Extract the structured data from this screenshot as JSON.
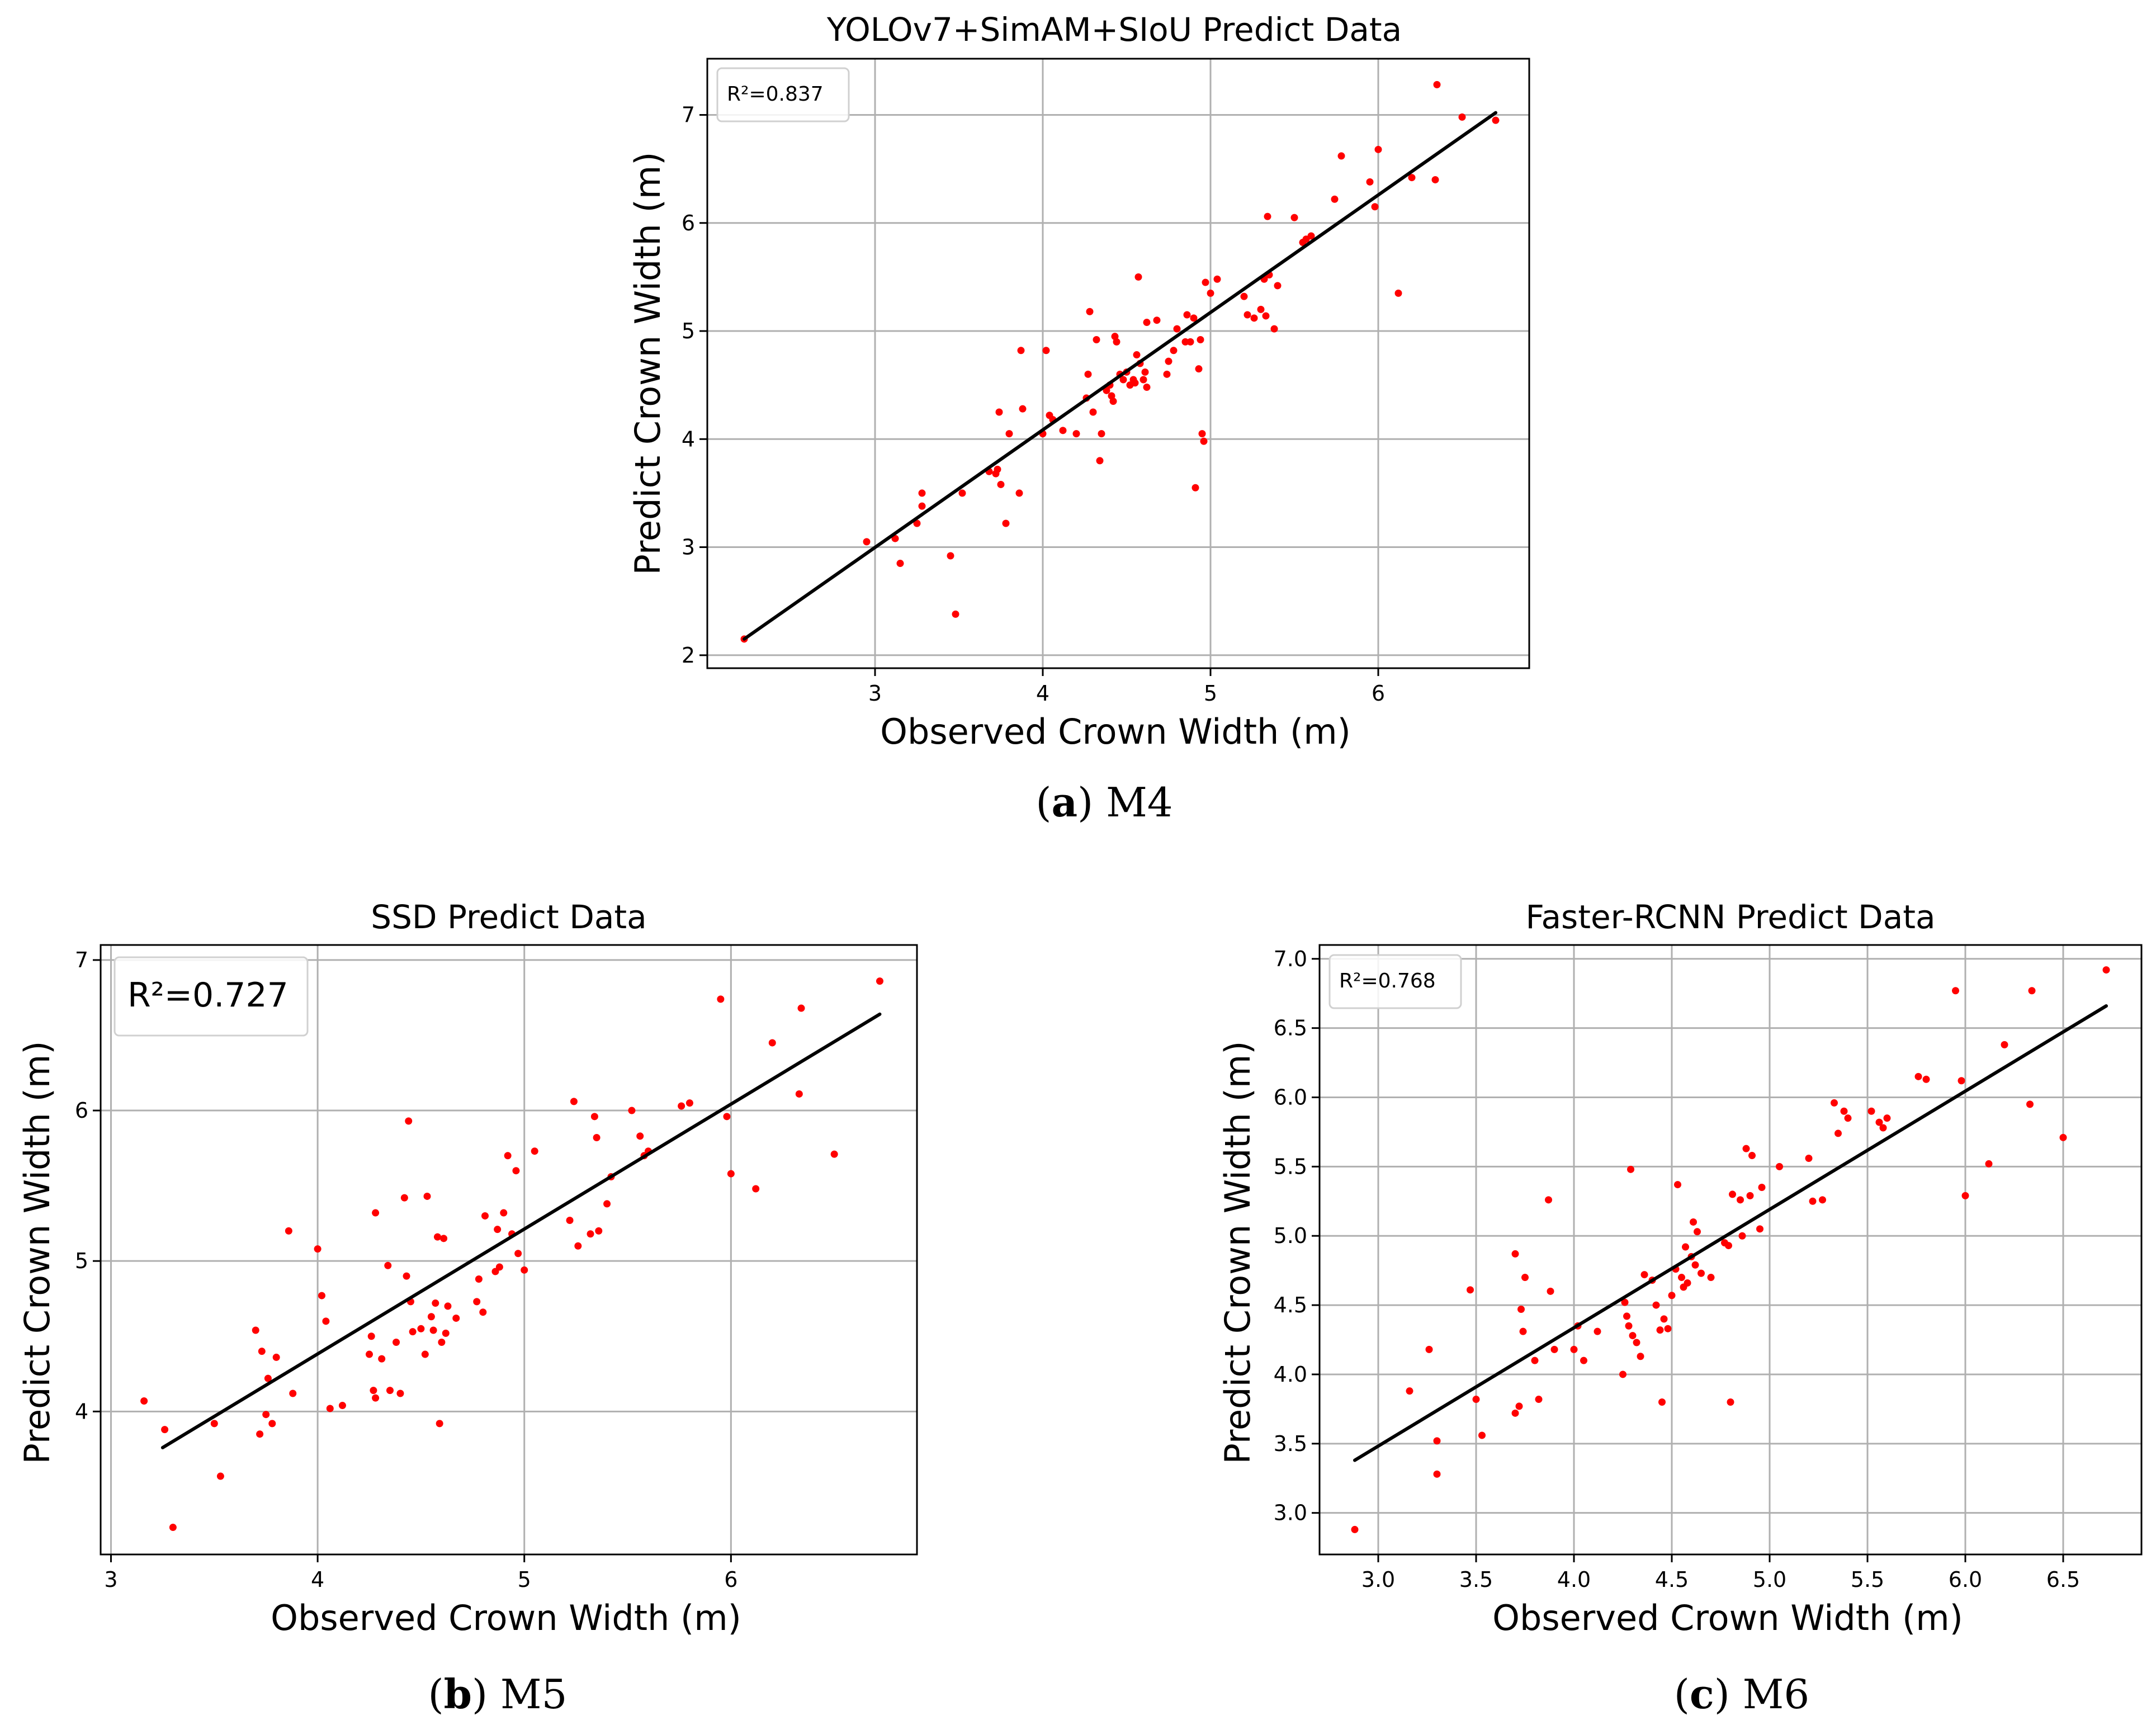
{
  "captions": [
    {
      "letter": "a",
      "open": "(",
      "rest": ") M4"
    },
    {
      "letter": "b",
      "open": "(",
      "rest": ") M5"
    },
    {
      "letter": "c",
      "open": "(",
      "rest": ") M6"
    }
  ],
  "colors": {
    "points": "#ff0000",
    "line": "#000000",
    "grid": "#b0b0b0",
    "legend_border": "#d0d0d0"
  },
  "chart_data": [
    {
      "id": "m4",
      "type": "scatter",
      "title": "YOLOv7+SimAM+SIoU Predict Data",
      "xlabel": "Observed Crown Width   (m)",
      "ylabel": "Predict Crown Width   (m)",
      "legend": "R²=0.837",
      "legend_position": "top-left",
      "xlim": [
        2.0,
        6.9
      ],
      "ylim": [
        1.88,
        7.52
      ],
      "xticks": [
        3,
        4,
        5,
        6
      ],
      "xtick_labels": [
        "3",
        "4",
        "5",
        "6"
      ],
      "yticks": [
        2,
        3,
        4,
        5,
        6,
        7
      ],
      "ytick_labels": [
        "2",
        "3",
        "4",
        "5",
        "6",
        "7"
      ],
      "grid": true,
      "fit_line": {
        "x": [
          2.22,
          6.7
        ],
        "y": [
          2.15,
          7.02
        ]
      },
      "points": [
        [
          2.22,
          2.15
        ],
        [
          2.95,
          3.05
        ],
        [
          3.12,
          3.08
        ],
        [
          3.15,
          2.85
        ],
        [
          3.25,
          3.22
        ],
        [
          3.28,
          3.38
        ],
        [
          3.28,
          3.5
        ],
        [
          3.45,
          2.92
        ],
        [
          3.48,
          2.38
        ],
        [
          3.52,
          3.5
        ],
        [
          3.68,
          3.7
        ],
        [
          3.72,
          3.68
        ],
        [
          3.73,
          3.72
        ],
        [
          3.74,
          4.25
        ],
        [
          3.75,
          3.58
        ],
        [
          3.78,
          3.22
        ],
        [
          3.8,
          4.05
        ],
        [
          3.86,
          3.5
        ],
        [
          3.87,
          4.82
        ],
        [
          3.88,
          4.28
        ],
        [
          4.0,
          4.05
        ],
        [
          4.02,
          4.82
        ],
        [
          4.04,
          4.22
        ],
        [
          4.06,
          4.18
        ],
        [
          4.12,
          4.08
        ],
        [
          4.2,
          4.05
        ],
        [
          4.26,
          4.38
        ],
        [
          4.27,
          4.6
        ],
        [
          4.28,
          5.18
        ],
        [
          4.3,
          4.25
        ],
        [
          4.32,
          4.92
        ],
        [
          4.34,
          3.8
        ],
        [
          4.35,
          4.05
        ],
        [
          4.38,
          4.45
        ],
        [
          4.4,
          4.5
        ],
        [
          4.41,
          4.4
        ],
        [
          4.42,
          4.35
        ],
        [
          4.43,
          4.95
        ],
        [
          4.44,
          4.9
        ],
        [
          4.46,
          4.6
        ],
        [
          4.48,
          4.55
        ],
        [
          4.5,
          4.62
        ],
        [
          4.52,
          4.5
        ],
        [
          4.54,
          4.55
        ],
        [
          4.55,
          4.52
        ],
        [
          4.56,
          4.78
        ],
        [
          4.57,
          5.5
        ],
        [
          4.58,
          4.7
        ],
        [
          4.6,
          4.55
        ],
        [
          4.61,
          4.62
        ],
        [
          4.62,
          4.48
        ],
        [
          4.62,
          5.08
        ],
        [
          4.68,
          5.1
        ],
        [
          4.74,
          4.6
        ],
        [
          4.75,
          4.72
        ],
        [
          4.78,
          4.82
        ],
        [
          4.8,
          5.02
        ],
        [
          4.85,
          4.9
        ],
        [
          4.86,
          5.15
        ],
        [
          4.88,
          4.9
        ],
        [
          4.9,
          5.12
        ],
        [
          4.91,
          3.55
        ],
        [
          4.93,
          4.65
        ],
        [
          4.94,
          4.92
        ],
        [
          4.95,
          4.05
        ],
        [
          4.96,
          3.98
        ],
        [
          4.97,
          5.45
        ],
        [
          5.0,
          5.35
        ],
        [
          5.04,
          5.48
        ],
        [
          5.2,
          5.32
        ],
        [
          5.22,
          5.15
        ],
        [
          5.26,
          5.12
        ],
        [
          5.3,
          5.2
        ],
        [
          5.32,
          5.48
        ],
        [
          5.33,
          5.14
        ],
        [
          5.34,
          6.06
        ],
        [
          5.35,
          5.52
        ],
        [
          5.38,
          5.02
        ],
        [
          5.4,
          5.42
        ],
        [
          5.5,
          6.05
        ],
        [
          5.55,
          5.82
        ],
        [
          5.57,
          5.85
        ],
        [
          5.6,
          5.88
        ],
        [
          5.74,
          6.22
        ],
        [
          5.78,
          6.62
        ],
        [
          5.95,
          6.38
        ],
        [
          5.98,
          6.15
        ],
        [
          6.0,
          6.68
        ],
        [
          6.12,
          5.35
        ],
        [
          6.2,
          6.42
        ],
        [
          6.34,
          6.4
        ],
        [
          6.35,
          7.28
        ],
        [
          6.5,
          6.98
        ],
        [
          6.7,
          6.95
        ]
      ]
    },
    {
      "id": "m5",
      "type": "scatter",
      "title": "SSD Predict Data",
      "xlabel": "Observed Crown Width   (m)",
      "ylabel": "Predict Crown Width   (m)",
      "legend": "R²=0.727",
      "legend_position": "top-left",
      "xlim": [
        2.95,
        6.9
      ],
      "ylim": [
        3.05,
        7.1
      ],
      "xticks": [
        3,
        4,
        5,
        6
      ],
      "xtick_labels": [
        "3",
        "4",
        "5",
        "6"
      ],
      "yticks": [
        4,
        5,
        6,
        7
      ],
      "ytick_labels": [
        "4",
        "5",
        "6",
        "7"
      ],
      "grid": true,
      "fit_line": {
        "x": [
          3.25,
          6.72
        ],
        "y": [
          3.76,
          6.64
        ]
      },
      "points": [
        [
          3.16,
          4.07
        ],
        [
          3.26,
          3.88
        ],
        [
          3.3,
          3.23
        ],
        [
          3.5,
          3.92
        ],
        [
          3.53,
          3.57
        ],
        [
          3.7,
          4.54
        ],
        [
          3.72,
          3.85
        ],
        [
          3.73,
          4.4
        ],
        [
          3.75,
          3.98
        ],
        [
          3.76,
          4.22
        ],
        [
          3.78,
          3.92
        ],
        [
          3.8,
          4.36
        ],
        [
          3.86,
          5.2
        ],
        [
          3.88,
          4.12
        ],
        [
          4.0,
          5.08
        ],
        [
          4.02,
          4.77
        ],
        [
          4.04,
          4.6
        ],
        [
          4.06,
          4.02
        ],
        [
          4.12,
          4.04
        ],
        [
          4.25,
          4.38
        ],
        [
          4.26,
          4.5
        ],
        [
          4.27,
          4.14
        ],
        [
          4.28,
          5.32
        ],
        [
          4.28,
          4.09
        ],
        [
          4.31,
          4.35
        ],
        [
          4.34,
          4.97
        ],
        [
          4.35,
          4.14
        ],
        [
          4.38,
          4.46
        ],
        [
          4.4,
          4.12
        ],
        [
          4.42,
          5.42
        ],
        [
          4.43,
          4.9
        ],
        [
          4.44,
          5.93
        ],
        [
          4.45,
          4.73
        ],
        [
          4.46,
          4.53
        ],
        [
          4.5,
          4.55
        ],
        [
          4.52,
          4.38
        ],
        [
          4.53,
          5.43
        ],
        [
          4.55,
          4.63
        ],
        [
          4.56,
          4.54
        ],
        [
          4.57,
          4.72
        ],
        [
          4.58,
          5.16
        ],
        [
          4.59,
          3.92
        ],
        [
          4.6,
          4.46
        ],
        [
          4.61,
          5.15
        ],
        [
          4.62,
          4.52
        ],
        [
          4.63,
          4.7
        ],
        [
          4.67,
          4.62
        ],
        [
          4.77,
          4.73
        ],
        [
          4.78,
          4.88
        ],
        [
          4.8,
          4.66
        ],
        [
          4.81,
          5.3
        ],
        [
          4.86,
          4.93
        ],
        [
          4.87,
          5.21
        ],
        [
          4.88,
          4.96
        ],
        [
          4.9,
          5.32
        ],
        [
          4.92,
          5.7
        ],
        [
          4.94,
          5.18
        ],
        [
          4.96,
          5.6
        ],
        [
          4.97,
          5.05
        ],
        [
          5.0,
          4.94
        ],
        [
          5.05,
          5.73
        ],
        [
          5.22,
          5.27
        ],
        [
          5.24,
          6.06
        ],
        [
          5.26,
          5.1
        ],
        [
          5.32,
          5.18
        ],
        [
          5.34,
          5.96
        ],
        [
          5.35,
          5.82
        ],
        [
          5.36,
          5.2
        ],
        [
          5.4,
          5.38
        ],
        [
          5.42,
          5.56
        ],
        [
          5.52,
          6.0
        ],
        [
          5.56,
          5.83
        ],
        [
          5.58,
          5.7
        ],
        [
          5.6,
          5.73
        ],
        [
          5.76,
          6.03
        ],
        [
          5.8,
          6.05
        ],
        [
          5.95,
          6.74
        ],
        [
          5.98,
          5.96
        ],
        [
          6.0,
          5.58
        ],
        [
          6.12,
          5.48
        ],
        [
          6.2,
          6.45
        ],
        [
          6.33,
          6.11
        ],
        [
          6.34,
          6.68
        ],
        [
          6.5,
          5.71
        ],
        [
          6.72,
          6.86
        ]
      ]
    },
    {
      "id": "m6",
      "type": "scatter",
      "title": "Faster-RCNN Predict Data",
      "xlabel": "Observed Crown Width   (m)",
      "ylabel": "Predict Crown Width   (m)",
      "legend": "R²=0.768",
      "legend_position": "top-left",
      "xlim": [
        2.7,
        6.9
      ],
      "ylim": [
        2.7,
        7.1
      ],
      "xticks": [
        3.0,
        3.5,
        4.0,
        4.5,
        5.0,
        5.5,
        6.0,
        6.5
      ],
      "xtick_labels": [
        "3.0",
        "3.5",
        "4.0",
        "4.5",
        "5.0",
        "5.5",
        "6.0",
        "6.5"
      ],
      "yticks": [
        3.0,
        3.5,
        4.0,
        4.5,
        5.0,
        5.5,
        6.0,
        6.5,
        7.0
      ],
      "ytick_labels": [
        "3.0",
        "3.5",
        "4.0",
        "4.5",
        "5.0",
        "5.5",
        "6.0",
        "6.5",
        "7.0"
      ],
      "grid": true,
      "fit_line": {
        "x": [
          2.88,
          6.72
        ],
        "y": [
          3.38,
          6.66
        ]
      },
      "points": [
        [
          2.88,
          2.88
        ],
        [
          3.16,
          3.88
        ],
        [
          3.26,
          4.18
        ],
        [
          3.3,
          3.28
        ],
        [
          3.3,
          3.52
        ],
        [
          3.47,
          4.61
        ],
        [
          3.5,
          3.82
        ],
        [
          3.53,
          3.56
        ],
        [
          3.7,
          4.87
        ],
        [
          3.7,
          3.72
        ],
        [
          3.72,
          3.77
        ],
        [
          3.73,
          4.47
        ],
        [
          3.74,
          4.31
        ],
        [
          3.75,
          4.7
        ],
        [
          3.8,
          4.1
        ],
        [
          3.82,
          3.82
        ],
        [
          3.87,
          5.26
        ],
        [
          3.88,
          4.6
        ],
        [
          3.9,
          4.18
        ],
        [
          4.0,
          4.18
        ],
        [
          4.02,
          4.35
        ],
        [
          4.05,
          4.1
        ],
        [
          4.12,
          4.31
        ],
        [
          4.25,
          4.0
        ],
        [
          4.26,
          4.52
        ],
        [
          4.27,
          4.42
        ],
        [
          4.28,
          4.35
        ],
        [
          4.29,
          5.48
        ],
        [
          4.3,
          4.28
        ],
        [
          4.32,
          4.23
        ],
        [
          4.34,
          4.13
        ],
        [
          4.36,
          4.72
        ],
        [
          4.4,
          4.68
        ],
        [
          4.42,
          4.5
        ],
        [
          4.44,
          4.32
        ],
        [
          4.45,
          3.8
        ],
        [
          4.46,
          4.4
        ],
        [
          4.48,
          4.33
        ],
        [
          4.5,
          4.57
        ],
        [
          4.52,
          4.76
        ],
        [
          4.53,
          5.37
        ],
        [
          4.55,
          4.7
        ],
        [
          4.56,
          4.63
        ],
        [
          4.57,
          4.92
        ],
        [
          4.58,
          4.66
        ],
        [
          4.6,
          4.85
        ],
        [
          4.61,
          5.1
        ],
        [
          4.62,
          4.79
        ],
        [
          4.63,
          5.03
        ],
        [
          4.65,
          4.73
        ],
        [
          4.7,
          4.7
        ],
        [
          4.77,
          4.95
        ],
        [
          4.79,
          4.93
        ],
        [
          4.8,
          3.8
        ],
        [
          4.81,
          5.3
        ],
        [
          4.85,
          5.26
        ],
        [
          4.86,
          5.0
        ],
        [
          4.88,
          5.63
        ],
        [
          4.9,
          5.29
        ],
        [
          4.91,
          5.58
        ],
        [
          4.95,
          5.05
        ],
        [
          4.96,
          5.35
        ],
        [
          5.05,
          5.5
        ],
        [
          5.2,
          5.56
        ],
        [
          5.22,
          5.25
        ],
        [
          5.27,
          5.26
        ],
        [
          5.33,
          5.96
        ],
        [
          5.35,
          5.74
        ],
        [
          5.38,
          5.9
        ],
        [
          5.4,
          5.85
        ],
        [
          5.52,
          5.9
        ],
        [
          5.56,
          5.82
        ],
        [
          5.58,
          5.78
        ],
        [
          5.6,
          5.85
        ],
        [
          5.76,
          6.15
        ],
        [
          5.8,
          6.13
        ],
        [
          5.95,
          6.77
        ],
        [
          5.98,
          6.12
        ],
        [
          6.0,
          5.29
        ],
        [
          6.12,
          5.52
        ],
        [
          6.2,
          6.38
        ],
        [
          6.33,
          5.95
        ],
        [
          6.34,
          6.77
        ],
        [
          6.5,
          5.71
        ],
        [
          6.72,
          6.92
        ]
      ]
    }
  ]
}
